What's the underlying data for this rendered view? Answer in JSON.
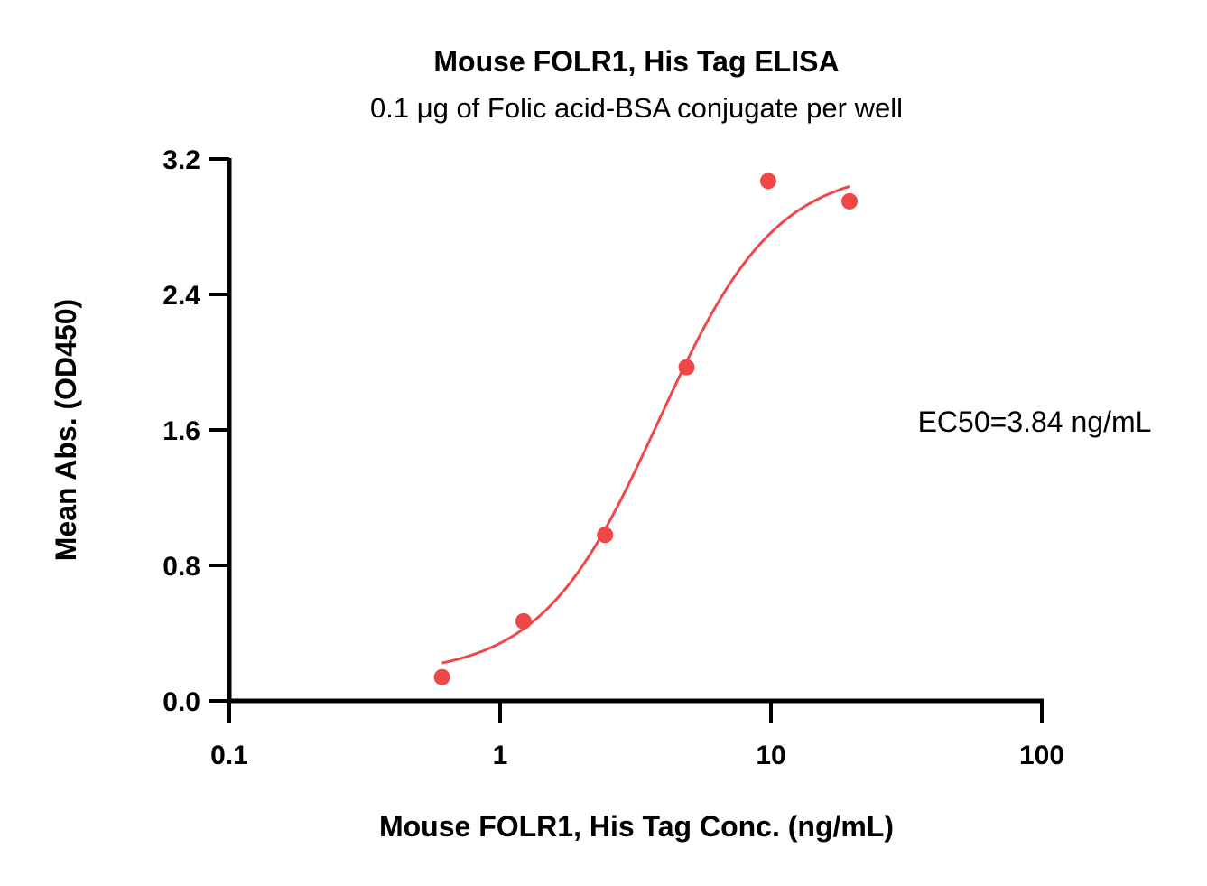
{
  "chart_data": {
    "type": "scatter",
    "title": "Mouse FOLR1, His Tag ELISA",
    "subtitle": "0.1 μg of Folic acid-BSA conjugate per well",
    "xlabel": "Mouse FOLR1, His Tag Conc. (ng/mL)",
    "ylabel": "Mean Abs. (OD450)",
    "xscale": "log",
    "xlim": [
      0.1,
      100
    ],
    "ylim": [
      0.0,
      3.2
    ],
    "xticks": [
      0.1,
      1,
      10,
      100
    ],
    "xtick_labels": [
      "0.1",
      "1",
      "10",
      "100"
    ],
    "yticks": [
      0.0,
      0.8,
      1.6,
      2.4,
      3.2
    ],
    "ytick_labels": [
      "0.0",
      "0.8",
      "1.6",
      "2.4",
      "3.2"
    ],
    "grid": false,
    "legend": "none",
    "color": "#f04848",
    "series": [
      {
        "x": [
          0.61,
          1.22,
          2.44,
          4.88,
          9.77,
          19.5
        ],
        "y": [
          0.14,
          0.47,
          0.98,
          1.97,
          3.07,
          2.95
        ]
      }
    ],
    "fit_curve": {
      "type": "4PL",
      "bottom": 0.15,
      "top": 3.15,
      "ec50": 3.84,
      "hill": 2.0,
      "x_range": [
        0.61,
        19.5
      ]
    },
    "annotations": [
      {
        "text": "EC50=3.84 ng/mL"
      }
    ]
  }
}
